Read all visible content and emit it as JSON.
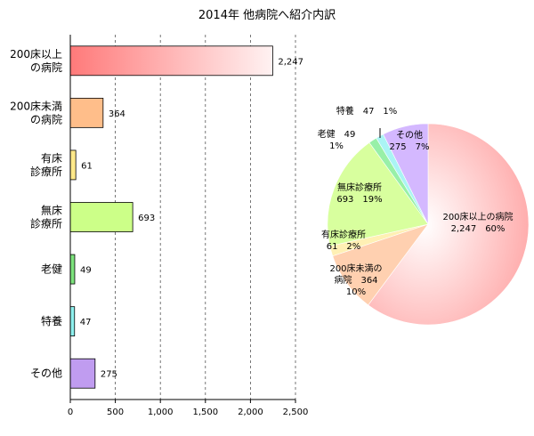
{
  "chart_data": [
    {
      "type": "bar",
      "orientation": "horizontal",
      "title": "2014年 他病院へ紹介内訳",
      "categories": [
        [
          "200床以上",
          "の病院"
        ],
        [
          "200床未満",
          "の病院"
        ],
        [
          "有床",
          "診療所"
        ],
        [
          "無床",
          "診療所"
        ],
        [
          "老健"
        ],
        [
          "特養"
        ],
        [
          "その他"
        ]
      ],
      "values": [
        2247,
        364,
        61,
        693,
        49,
        47,
        275
      ],
      "value_labels": [
        "2,247",
        "364",
        "61",
        "693",
        "49",
        "47",
        "275"
      ],
      "xlim": [
        0,
        2500
      ],
      "ticks": [
        0,
        500,
        1000,
        1500,
        2000,
        2500
      ],
      "tick_labels": [
        "0",
        "500",
        "1,000",
        "1,500",
        "2,000",
        "2,500"
      ],
      "grid": "vertical dashed",
      "colors": [
        "#ff8080",
        "#ffbe8a",
        "#ffe98a",
        "#ccff88",
        "#7de37d",
        "#8ef0ee",
        "#c09cf0"
      ],
      "gradient_first_bar": true
    },
    {
      "type": "pie",
      "start": "12 o'clock, clockwise",
      "slices": [
        {
          "label": "200床以上の病院",
          "value": 2247,
          "text_lines": [
            "200床以上の病院",
            "2,247　60%"
          ],
          "color": "#ff9c9c"
        },
        {
          "label": "200床未満の病院",
          "value": 364,
          "text_lines": [
            "200床未満の",
            "病院　364",
            "10%"
          ],
          "color": "#ffd0b0"
        },
        {
          "label": "有床診療所",
          "value": 61,
          "text_lines": [
            "有床診療所",
            "61　2%"
          ],
          "color": "#fff0b4"
        },
        {
          "label": "無床診療所",
          "value": 693,
          "text_lines": [
            "無床診療所",
            "693　19%"
          ],
          "color": "#d8ff9e"
        },
        {
          "label": "老健",
          "value": 49,
          "text_lines": [
            "老健　49",
            "1%"
          ],
          "color": "#98f0a8"
        },
        {
          "label": "特養",
          "value": 47,
          "text_lines": [
            "特養　47　1%"
          ],
          "color": "#aaf4f4"
        },
        {
          "label": "その他",
          "value": 275,
          "text_lines": [
            "その他",
            "275　7%"
          ],
          "color": "#d4b8ff"
        }
      ]
    }
  ]
}
